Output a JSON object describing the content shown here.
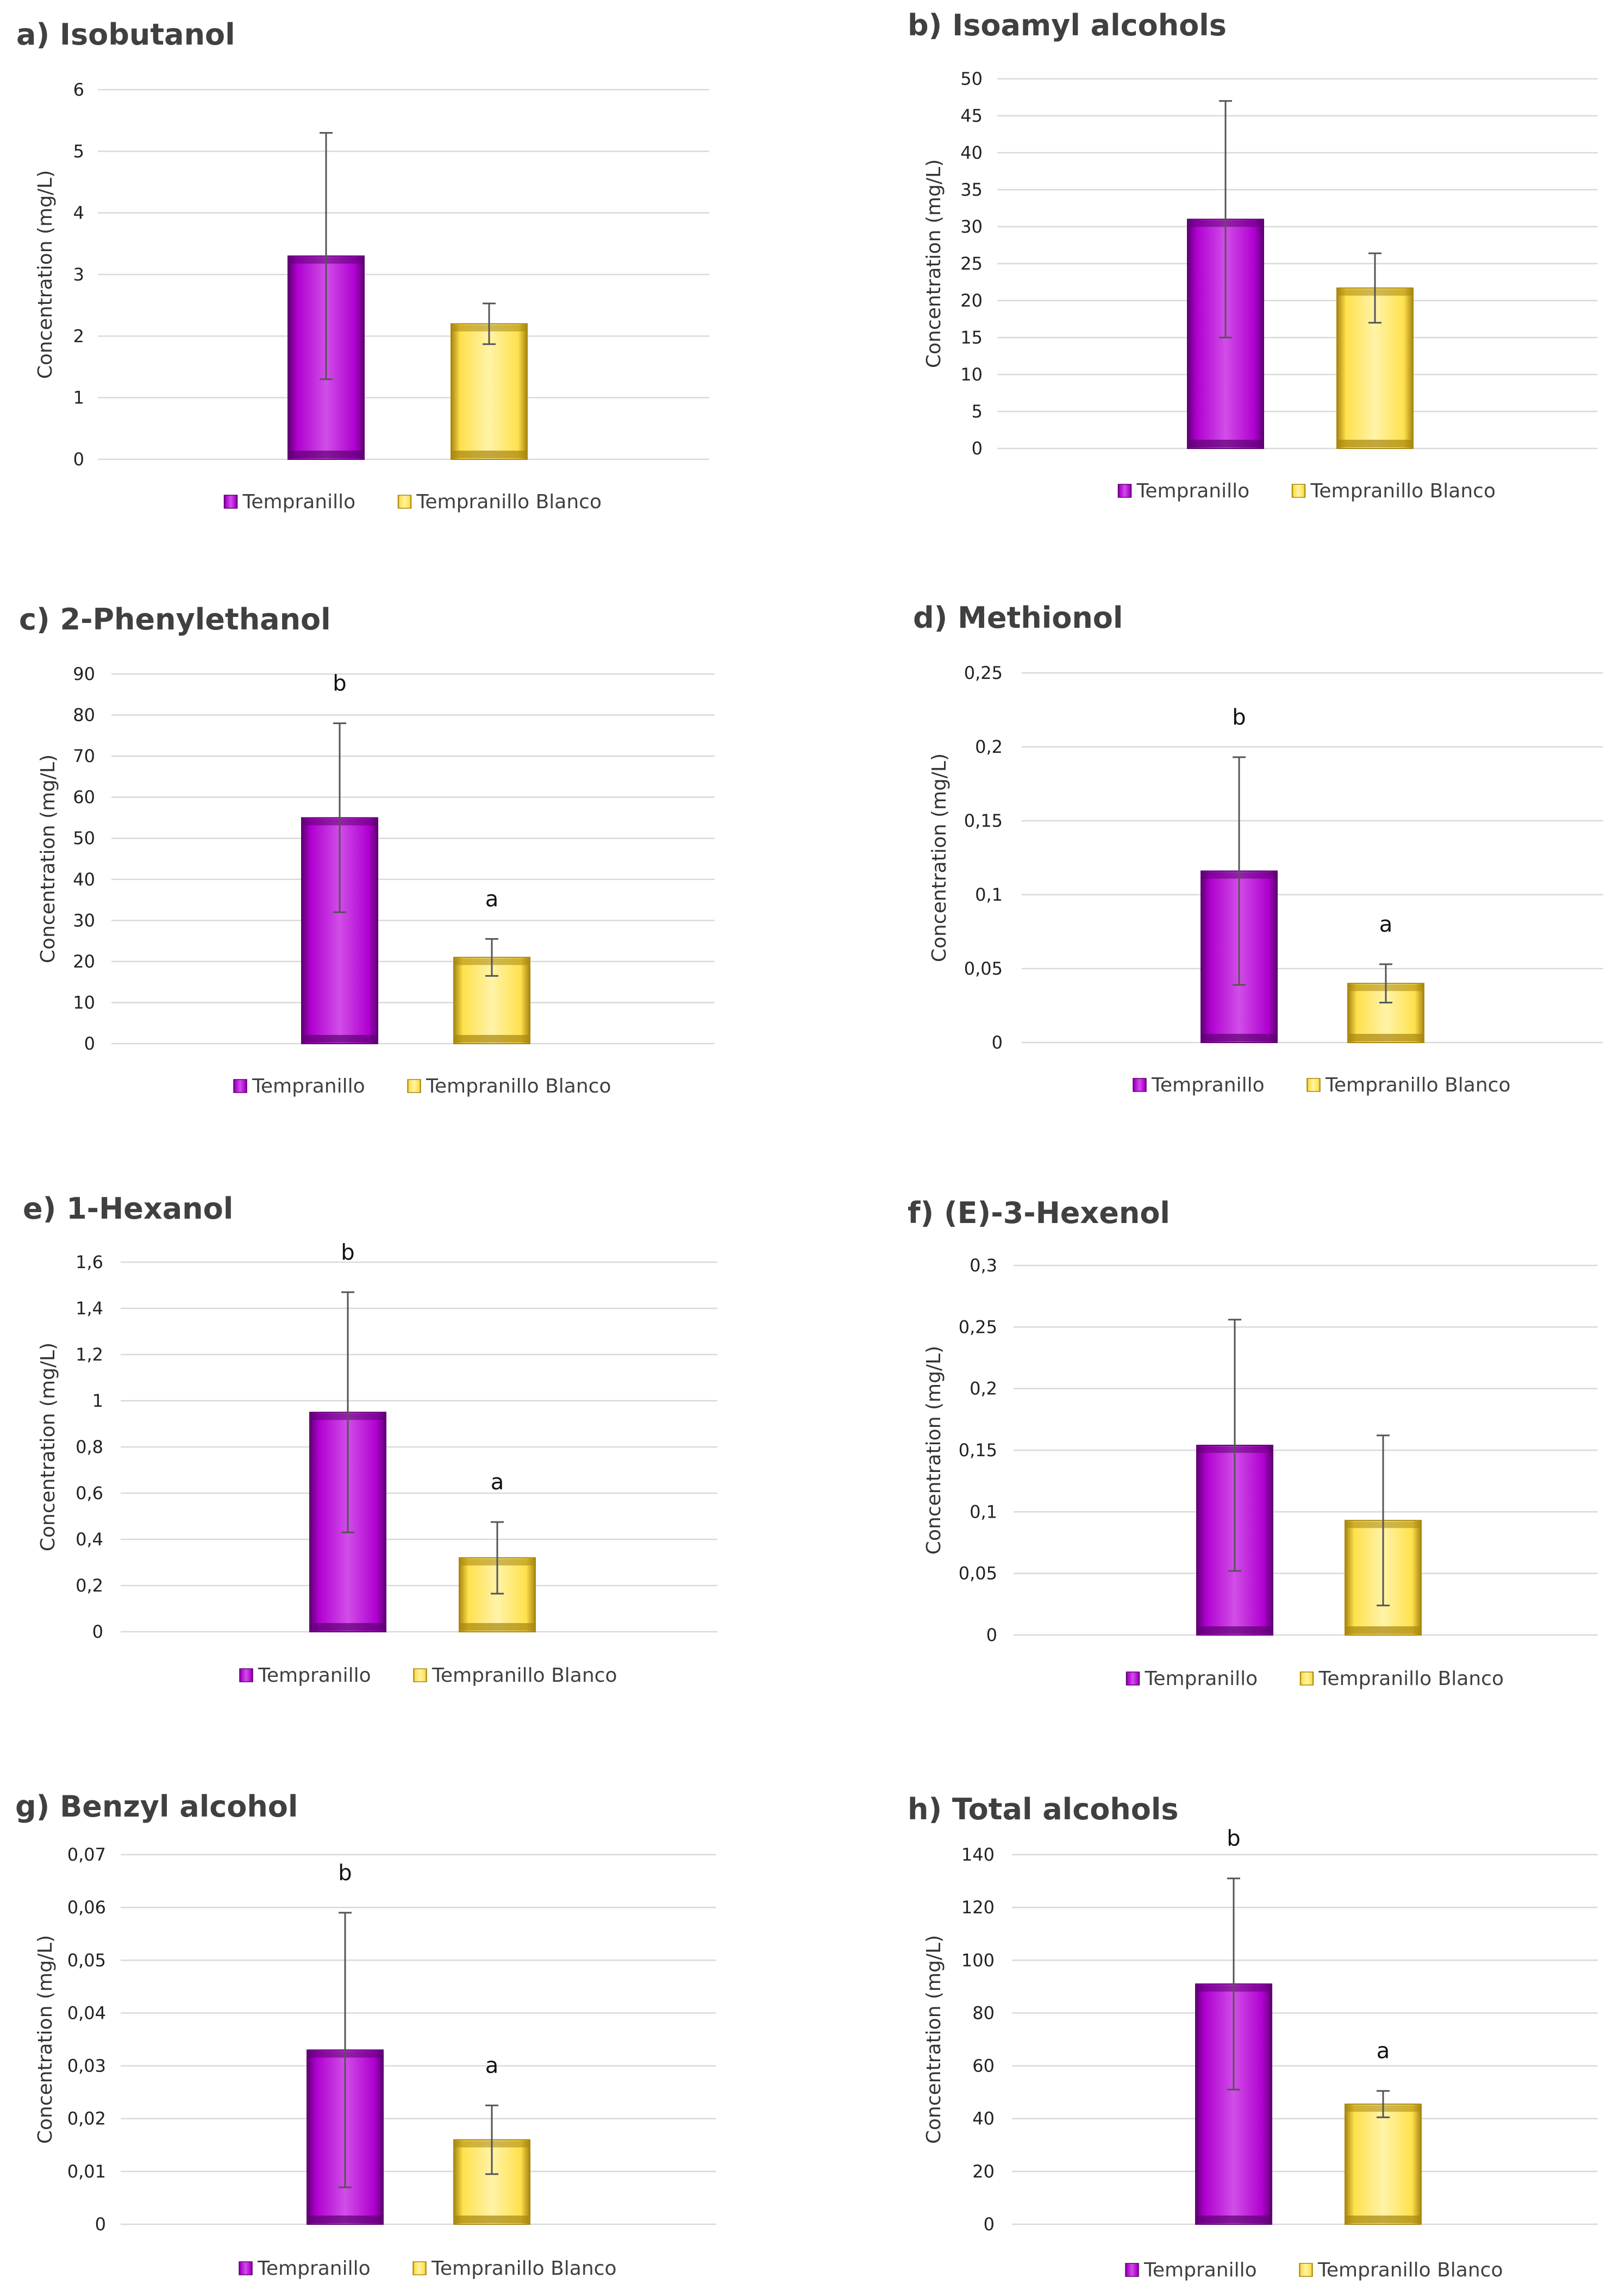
{
  "colors": {
    "tempranillo": "#b000d0",
    "tempranillo_dark": "#5e0072",
    "tempranillo_light": "#d14ee8",
    "blanco": "#ffe14d",
    "blanco_dark": "#a8860e",
    "blanco_light": "#fff3a8",
    "grid": "#d9d9d9",
    "error": "#555555"
  },
  "legend": [
    "Tempranillo",
    "Tempranillo Blanco"
  ],
  "ylabel": "Concentration (mg/L)",
  "chart_data": [
    {
      "type": "bar",
      "title": "a) Isobutanol",
      "ylabel": "Concentration (mg/L)",
      "categories": [
        "Tempranillo",
        "Tempranillo Blanco"
      ],
      "values": [
        3.3,
        2.2
      ],
      "errors": [
        2.0,
        0.33
      ],
      "letters": [
        "",
        ""
      ],
      "ylim": [
        0,
        6
      ],
      "yticks": [
        0,
        1,
        2,
        3,
        4,
        5,
        6
      ],
      "ytick_labels": [
        "0",
        "1",
        "2",
        "3",
        "4",
        "5",
        "6"
      ],
      "grid": true,
      "legend": "bottom"
    },
    {
      "type": "bar",
      "title": "b) Isoamyl alcohols",
      "ylabel": "Concentration (mg/L)",
      "categories": [
        "Tempranillo",
        "Tempranillo Blanco"
      ],
      "values": [
        31,
        21.7
      ],
      "errors": [
        16,
        4.7
      ],
      "letters": [
        "",
        ""
      ],
      "ylim": [
        0,
        50
      ],
      "yticks": [
        0,
        5,
        10,
        15,
        20,
        25,
        30,
        35,
        40,
        45,
        50
      ],
      "ytick_labels": [
        "0",
        "5",
        "10",
        "15",
        "20",
        "25",
        "30",
        "35",
        "40",
        "45",
        "50"
      ],
      "grid": true,
      "legend": "bottom"
    },
    {
      "type": "bar",
      "title": "c) 2-Phenylethanol",
      "ylabel": "Concentration (mg/L)",
      "categories": [
        "Tempranillo",
        "Tempranillo Blanco"
      ],
      "values": [
        55,
        21
      ],
      "errors": [
        23,
        4.5
      ],
      "letters": [
        "b",
        "a"
      ],
      "ylim": [
        0,
        90
      ],
      "yticks": [
        0,
        10,
        20,
        30,
        40,
        50,
        60,
        70,
        80,
        90
      ],
      "ytick_labels": [
        "0",
        "10",
        "20",
        "30",
        "40",
        "50",
        "60",
        "70",
        "80",
        "90"
      ],
      "grid": true,
      "legend": "bottom"
    },
    {
      "type": "bar",
      "title": "d) Methionol",
      "ylabel": "Concentration (mg/L)",
      "categories": [
        "Tempranillo",
        "Tempranillo Blanco"
      ],
      "values": [
        0.116,
        0.04
      ],
      "errors": [
        0.077,
        0.013
      ],
      "letters": [
        "b",
        "a"
      ],
      "ylim": [
        0,
        0.25
      ],
      "yticks": [
        0,
        0.05,
        0.1,
        0.15,
        0.2,
        0.25
      ],
      "ytick_labels": [
        "0",
        "0,05",
        "0,1",
        "0,15",
        "0,2",
        "0,25"
      ],
      "grid": true,
      "legend": "bottom"
    },
    {
      "type": "bar",
      "title": "e) 1-Hexanol",
      "ylabel": "Concentration (mg/L)",
      "categories": [
        "Tempranillo",
        "Tempranillo Blanco"
      ],
      "values": [
        0.95,
        0.32
      ],
      "errors": [
        0.52,
        0.155
      ],
      "letters": [
        "b",
        "a"
      ],
      "ylim": [
        0,
        1.6
      ],
      "yticks": [
        0,
        0.2,
        0.4,
        0.6,
        0.8,
        1,
        1.2,
        1.4,
        1.6
      ],
      "ytick_labels": [
        "0",
        "0,2",
        "0,4",
        "0,6",
        "0,8",
        "1",
        "1,2",
        "1,4",
        "1,6"
      ],
      "grid": true,
      "legend": "bottom"
    },
    {
      "type": "bar",
      "title": "f) (E)-3-Hexenol",
      "ylabel": "Concentration (mg/L)",
      "categories": [
        "Tempranillo",
        "Tempranillo Blanco"
      ],
      "values": [
        0.154,
        0.093
      ],
      "errors": [
        0.102,
        0.069
      ],
      "letters": [
        "",
        ""
      ],
      "ylim": [
        0,
        0.3
      ],
      "yticks": [
        0,
        0.05,
        0.1,
        0.15,
        0.2,
        0.25,
        0.3
      ],
      "ytick_labels": [
        "0",
        "0,05",
        "0,1",
        "0,15",
        "0,2",
        "0,25",
        "0,3"
      ],
      "grid": true,
      "legend": "bottom"
    },
    {
      "type": "bar",
      "title": "g) Benzyl alcohol",
      "ylabel": "Concentration (mg/L)",
      "categories": [
        "Tempranillo",
        "Tempranillo Blanco"
      ],
      "values": [
        0.033,
        0.016
      ],
      "errors": [
        0.026,
        0.0065
      ],
      "letters": [
        "b",
        "a"
      ],
      "ylim": [
        0,
        0.07
      ],
      "yticks": [
        0,
        0.01,
        0.02,
        0.03,
        0.04,
        0.05,
        0.06,
        0.07
      ],
      "ytick_labels": [
        "0",
        "0,01",
        "0,02",
        "0,03",
        "0,04",
        "0,05",
        "0,06",
        "0,07"
      ],
      "grid": true,
      "legend": "bottom"
    },
    {
      "type": "bar",
      "title": "h) Total alcohols",
      "ylabel": "Concentration (mg/L)",
      "categories": [
        "Tempranillo",
        "Tempranillo Blanco"
      ],
      "values": [
        91,
        45.5
      ],
      "errors": [
        40,
        5
      ],
      "letters": [
        "b",
        "a"
      ],
      "ylim": [
        0,
        140
      ],
      "yticks": [
        0,
        20,
        40,
        60,
        80,
        100,
        120,
        140
      ],
      "ytick_labels": [
        "0",
        "20",
        "40",
        "60",
        "80",
        "100",
        "120",
        "140"
      ],
      "grid": true,
      "legend": "bottom"
    }
  ]
}
